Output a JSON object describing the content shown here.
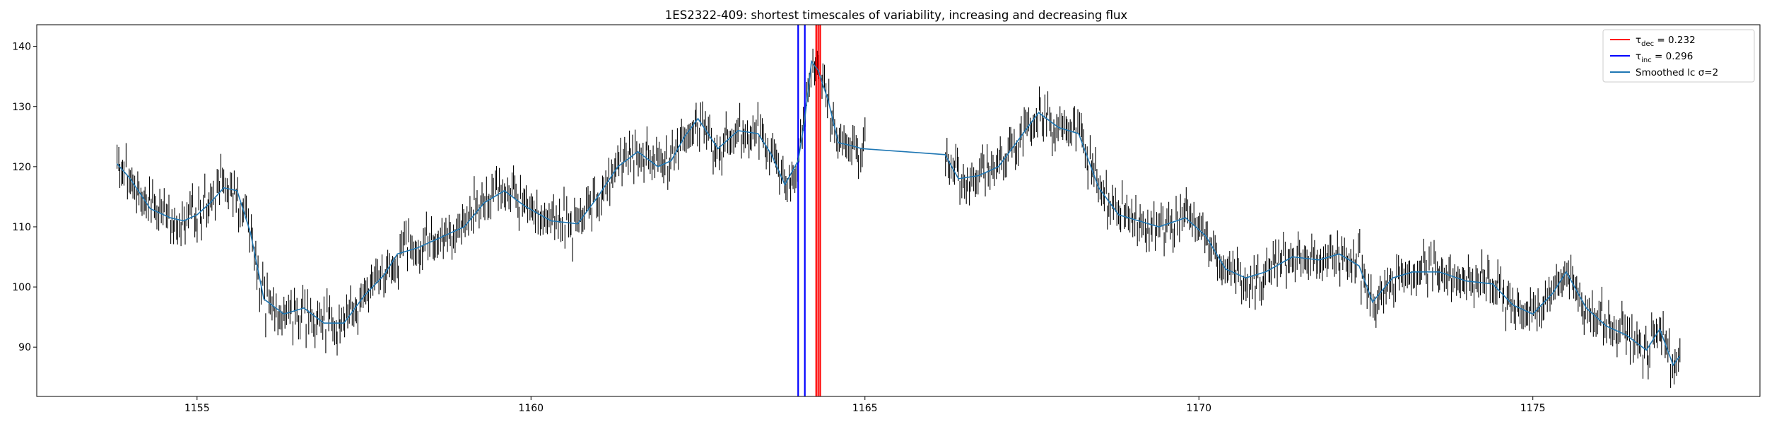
{
  "chart_data": {
    "type": "line",
    "title": "1ES2322-409: shortest timescales of variability, increasing and decreasing flux",
    "xlabel": "",
    "ylabel": "",
    "xlim": [
      1152.6,
      1178.4
    ],
    "ylim": [
      81.8,
      143.6
    ],
    "x_ticks": [
      1155,
      1160,
      1165,
      1170,
      1175
    ],
    "y_ticks": [
      90,
      100,
      110,
      120,
      130,
      140
    ],
    "grid": false,
    "legend_position": "top-right",
    "colors": {
      "decrease_lines": "#ff0000",
      "increase_lines": "#0000ff",
      "smoothed": "#1f77b4",
      "error_bars": "#000000"
    },
    "vertical_lines": [
      {
        "group": "dec",
        "x": 1164.27,
        "color": "#ff0000"
      },
      {
        "group": "dec",
        "x": 1164.3,
        "color": "#ff0000"
      },
      {
        "group": "dec",
        "x": 1164.33,
        "color": "#ff0000"
      },
      {
        "group": "inc",
        "x": 1164.0,
        "color": "#0000ff"
      },
      {
        "group": "inc",
        "x": 1164.1,
        "color": "#0000ff"
      }
    ],
    "legend": [
      {
        "label_base": "τ",
        "label_sub": "dec",
        "label_rest": " = 0.232",
        "color": "#ff0000",
        "kind": "line"
      },
      {
        "label_base": "τ",
        "label_sub": "inc",
        "label_rest": " = 0.296",
        "color": "#0000ff",
        "kind": "line"
      },
      {
        "label_base": "Smoothed lc σ=2",
        "label_sub": "",
        "label_rest": "",
        "color": "#1f77b4",
        "kind": "line"
      }
    ],
    "series": [
      {
        "name": "Smoothed lc σ=2",
        "x": [
          1153.8,
          1154.0,
          1154.3,
          1154.6,
          1154.8,
          1155.0,
          1155.2,
          1155.4,
          1155.6,
          1155.8,
          1156.0,
          1156.3,
          1156.6,
          1156.9,
          1157.2,
          1157.5,
          1157.8,
          1158.0,
          1158.3,
          1158.6,
          1159.0,
          1159.3,
          1159.6,
          1159.9,
          1160.3,
          1160.7,
          1161.0,
          1161.3,
          1161.6,
          1161.9,
          1162.1,
          1162.3,
          1162.5,
          1162.8,
          1163.1,
          1163.4,
          1163.6,
          1163.8,
          1164.0,
          1164.1,
          1164.2,
          1164.3,
          1164.45,
          1164.6,
          1164.8,
          1164.95,
          1166.2,
          1166.4,
          1166.7,
          1167.0,
          1167.3,
          1167.6,
          1167.9,
          1168.2,
          1168.5,
          1168.8,
          1169.1,
          1169.4,
          1169.8,
          1170.1,
          1170.4,
          1170.7,
          1171.0,
          1171.4,
          1171.8,
          1172.1,
          1172.4,
          1172.6,
          1172.9,
          1173.2,
          1173.6,
          1174.0,
          1174.4,
          1174.7,
          1175.0,
          1175.3,
          1175.5,
          1175.8,
          1176.1,
          1176.4,
          1176.7,
          1176.9,
          1177.1,
          1177.2
        ],
        "y": [
          120.5,
          118.0,
          113.0,
          111.5,
          111.0,
          112.0,
          114.0,
          116.5,
          116.0,
          109.0,
          98.0,
          95.5,
          96.5,
          94.0,
          94.0,
          98.5,
          102.0,
          105.5,
          106.5,
          108.0,
          110.0,
          114.0,
          116.0,
          113.5,
          111.0,
          110.5,
          115.0,
          120.0,
          122.5,
          120.0,
          121.0,
          125.0,
          128.0,
          123.0,
          126.0,
          125.5,
          122.0,
          117.0,
          121.0,
          128.0,
          137.5,
          136.0,
          131.0,
          124.0,
          123.5,
          123.0,
          122.0,
          118.0,
          118.5,
          120.0,
          124.5,
          129.0,
          126.5,
          125.5,
          116.5,
          112.0,
          111.0,
          110.0,
          111.5,
          108.5,
          103.0,
          101.5,
          102.5,
          105.0,
          104.5,
          105.5,
          103.5,
          97.5,
          101.5,
          102.5,
          102.5,
          101.0,
          100.5,
          97.0,
          95.5,
          99.0,
          102.5,
          96.5,
          93.5,
          92.0,
          89.5,
          93.0,
          87.0,
          88.5
        ]
      }
    ],
    "noise_seed": 7,
    "errorbar_halfwidth": 2.0,
    "errorbar_count": 1050
  }
}
